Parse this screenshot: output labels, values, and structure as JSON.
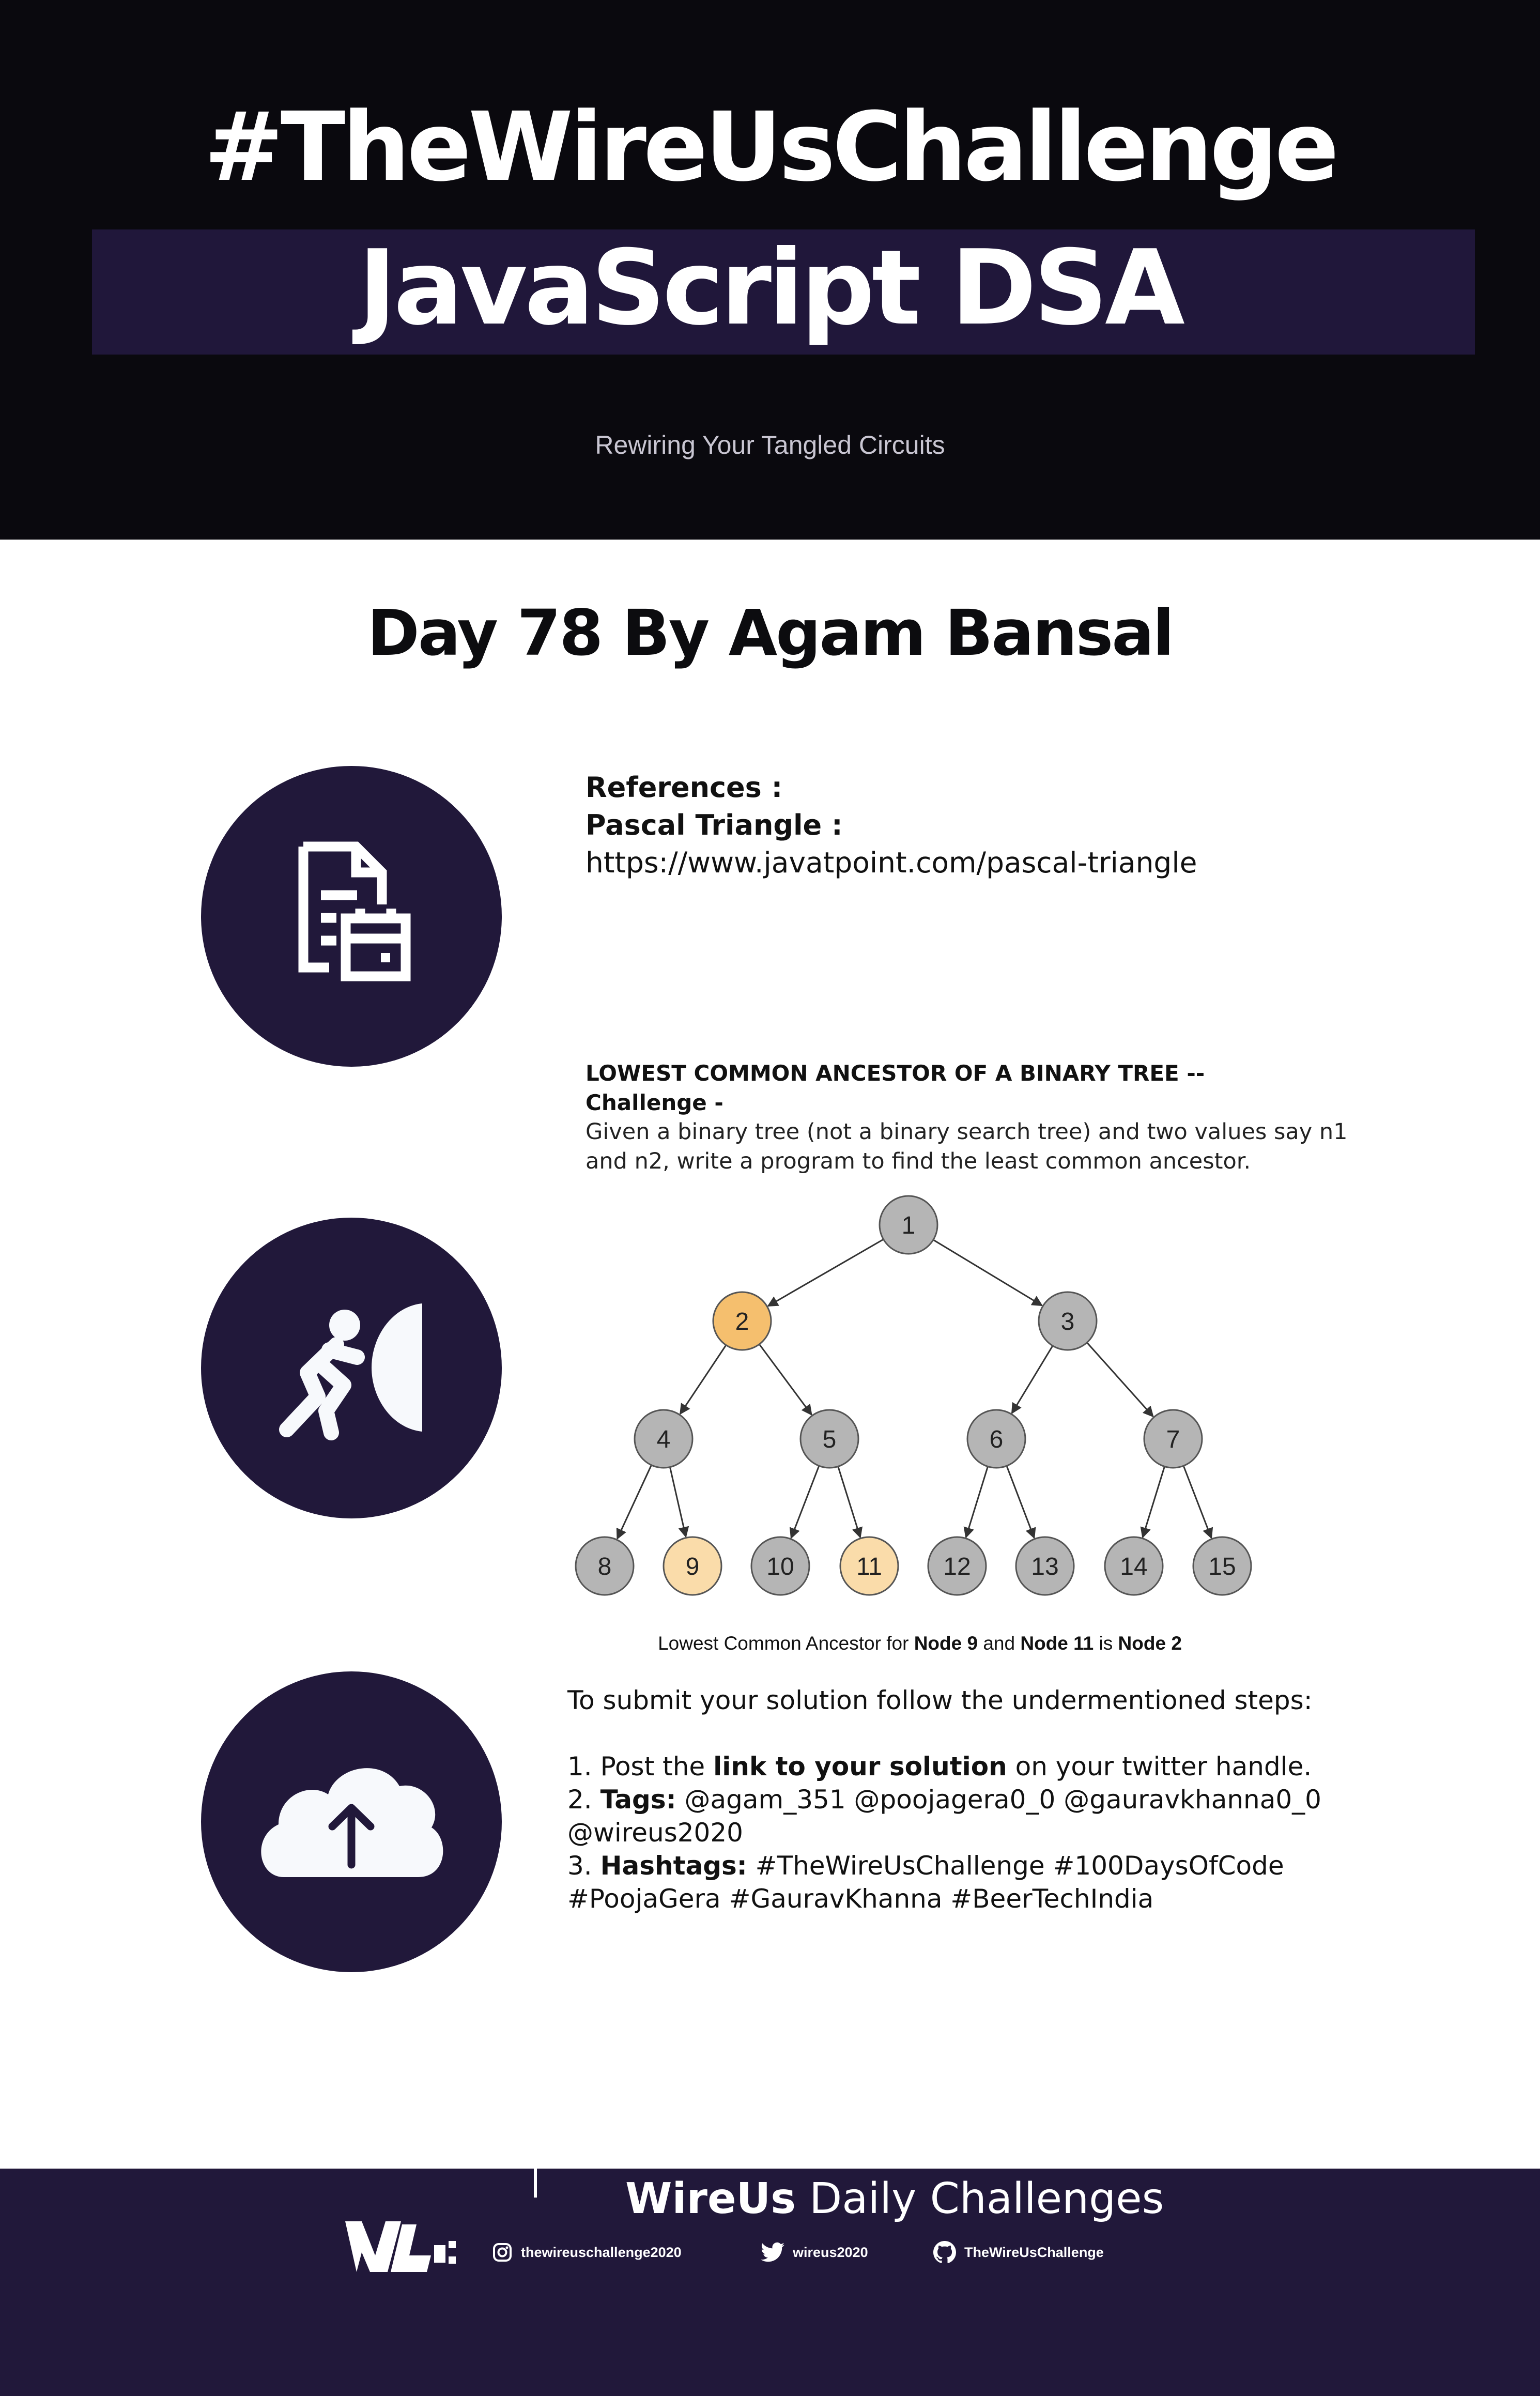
{
  "header": {
    "hashtag": "#TheWireUsChallenge",
    "banner_title": "JavaScript DSA",
    "tagline": "Rewiring Your Tangled Circuits"
  },
  "day_title": "Day 78 By Agam Bansal",
  "references": {
    "heading": "References :",
    "topic": "Pascal Triangle :",
    "url": "https://www.javatpoint.com/pascal-triangle"
  },
  "challenge": {
    "title": "LOWEST COMMON ANCESTOR OF A BINARY TREE --",
    "label": "Challenge -",
    "description": "Given a binary tree (not a binary search tree) and two values say n1 and n2, write a program to find the least common ancestor."
  },
  "tree": {
    "nodes": [
      {
        "label": "1",
        "highlight": "none"
      },
      {
        "label": "2",
        "highlight": "ancestor"
      },
      {
        "label": "3",
        "highlight": "none"
      },
      {
        "label": "4",
        "highlight": "none"
      },
      {
        "label": "5",
        "highlight": "none"
      },
      {
        "label": "6",
        "highlight": "none"
      },
      {
        "label": "7",
        "highlight": "none"
      },
      {
        "label": "8",
        "highlight": "none"
      },
      {
        "label": "9",
        "highlight": "target"
      },
      {
        "label": "10",
        "highlight": "none"
      },
      {
        "label": "11",
        "highlight": "target"
      },
      {
        "label": "12",
        "highlight": "none"
      },
      {
        "label": "13",
        "highlight": "none"
      },
      {
        "label": "14",
        "highlight": "none"
      },
      {
        "label": "15",
        "highlight": "none"
      }
    ],
    "colors": {
      "none": "#b5b5b5",
      "ancestor": "#f5bf6e",
      "target": "#fadcaa",
      "stroke": "#555555"
    },
    "caption_prefix": "Lowest Common Ancestor for",
    "caption_node_a": "Node 9",
    "caption_and": "and",
    "caption_node_b": "Node 11",
    "caption_is": "is",
    "caption_result": "Node 2"
  },
  "submit": {
    "intro": "To submit your solution follow the undermentioned steps:",
    "step1_prefix": "1. Post the",
    "step1_bold": "link to your solution",
    "step1_suffix": "on your twitter handle.",
    "step2_prefix": "2.",
    "step2_bold": "Tags:",
    "step2_text": "@agam_351 @poojagera0_0 @gauravkhanna0_0 @wireus2020",
    "step3_prefix": "3.",
    "step3_bold": "Hashtags:",
    "step3_text": "#TheWireUsChallenge #100DaysOfCode #PoojaGera #GauravKhanna #BeerTechIndia"
  },
  "footer": {
    "brand": "WireUs",
    "title_rest": "Daily Challenges",
    "instagram": "thewireuschallenge2020",
    "twitter": "wireus2020",
    "github": "TheWireUsChallenge"
  },
  "icons": {
    "references": "document-calendar-icon",
    "challenge": "person-pushing-icon",
    "submit": "cloud-upload-icon"
  },
  "theme": {
    "header_bg": "#0a090e",
    "accent": "#21183a"
  }
}
